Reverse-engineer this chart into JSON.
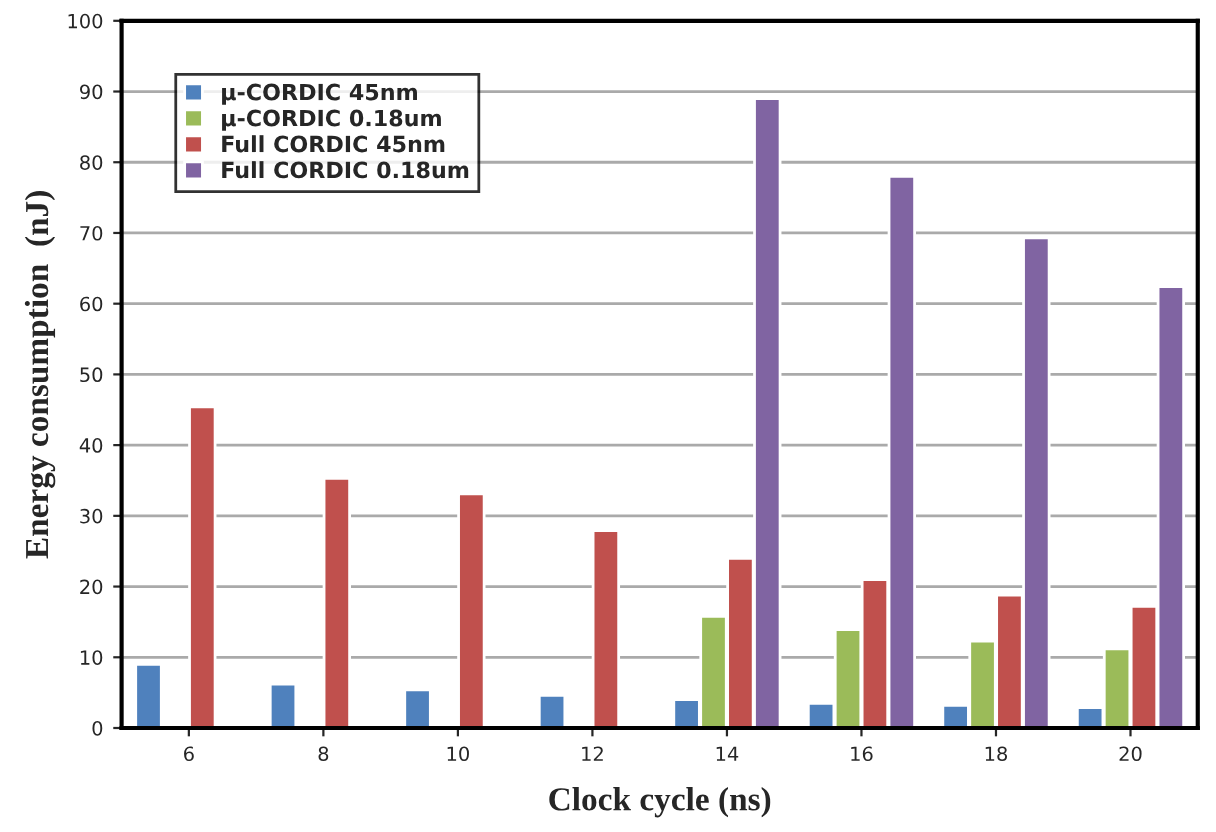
{
  "chart_data": {
    "type": "bar",
    "xlabel": "Clock cycle (ns)",
    "ylabel": "Energy consumption  (nJ)",
    "categories": [
      "6",
      "8",
      "10",
      "12",
      "14",
      "16",
      "18",
      "20"
    ],
    "series": [
      {
        "name": "μ-CORDIC 45nm",
        "color": "#4f81bd",
        "values": [
          9.0,
          6.2,
          5.4,
          4.6,
          4.0,
          3.5,
          3.2,
          2.9
        ]
      },
      {
        "name": "μ-CORDIC 0.18um",
        "color": "#9bbb59",
        "values": [
          null,
          null,
          null,
          null,
          15.8,
          13.9,
          12.3,
          11.2
        ]
      },
      {
        "name": "Full CORDIC 45nm",
        "color": "#c0504d",
        "values": [
          45.4,
          35.3,
          33.1,
          27.9,
          24.0,
          21.0,
          18.8,
          17.2
        ]
      },
      {
        "name": "Full CORDIC 0.18um",
        "color": "#8064a2",
        "values": [
          null,
          null,
          null,
          null,
          89.0,
          78.0,
          69.3,
          62.4
        ]
      }
    ],
    "ylim": [
      0,
      100
    ],
    "yticks": [
      0,
      10,
      20,
      30,
      40,
      50,
      60,
      70,
      80,
      90,
      100
    ],
    "grid": "y",
    "legend": "top left"
  }
}
